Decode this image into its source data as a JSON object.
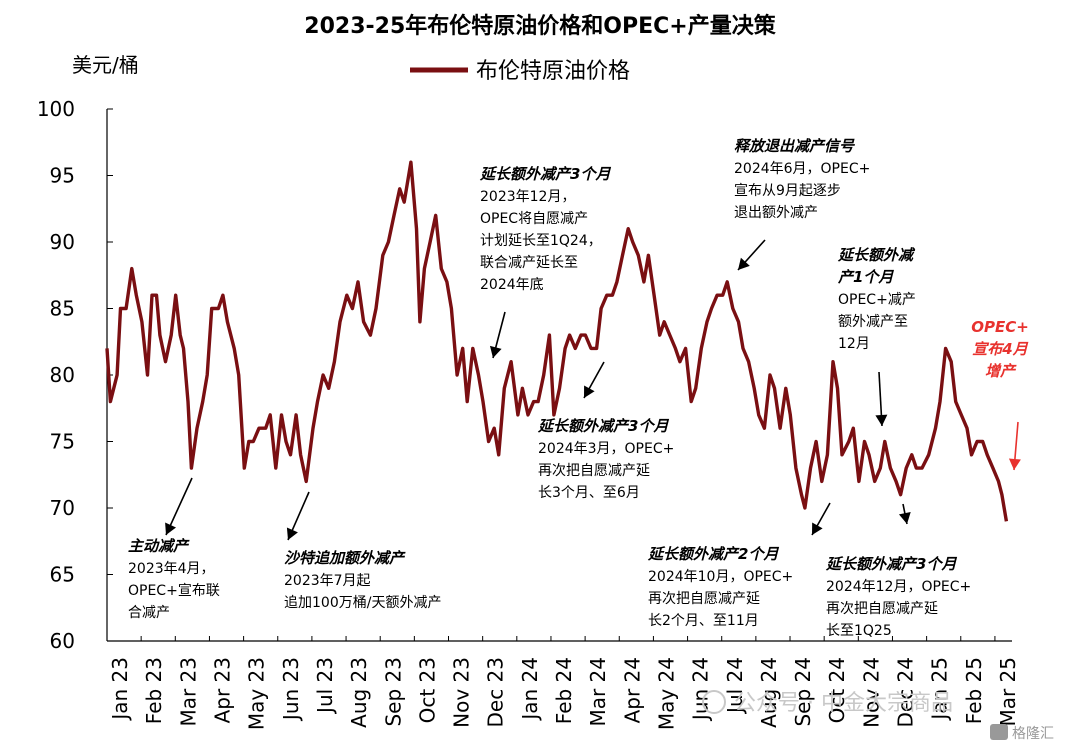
{
  "chart_data": {
    "type": "line",
    "title": "2023-25年布伦特原油价格和OPEC+产量决策",
    "ylabel": "美元/桶",
    "ylim": [
      60,
      100
    ],
    "yticks": [
      60,
      65,
      70,
      75,
      80,
      85,
      90,
      95,
      100
    ],
    "grid": false,
    "legend_position": "top-center",
    "x_range": [
      "2023-01-01",
      "2025-03-15"
    ],
    "x_tick_labels": [
      "Jan 23",
      "Feb 23",
      "Mar 23",
      "Apr 23",
      "May 23",
      "Jun 23",
      "Jul 23",
      "Aug 23",
      "Sep 23",
      "Oct 23",
      "Nov 23",
      "Dec 23",
      "Jan 24",
      "Feb 24",
      "Mar 24",
      "Apr 24",
      "May 24",
      "Jun 24",
      "Jul 24",
      "Aug 24",
      "Sep 24",
      "Oct 24",
      "Nov 24",
      "Dec 24",
      "Jan 25",
      "Feb 25",
      "Mar 25"
    ],
    "series": [
      {
        "name": "布伦特原油价格",
        "color": "#7a0f12",
        "points": [
          [
            "2023-01-01",
            82
          ],
          [
            "2023-01-04",
            78
          ],
          [
            "2023-01-10",
            80
          ],
          [
            "2023-01-13",
            85
          ],
          [
            "2023-01-18",
            85
          ],
          [
            "2023-01-23",
            88
          ],
          [
            "2023-01-27",
            86
          ],
          [
            "2023-02-01",
            84
          ],
          [
            "2023-02-06",
            80
          ],
          [
            "2023-02-10",
            86
          ],
          [
            "2023-02-14",
            86
          ],
          [
            "2023-02-17",
            83
          ],
          [
            "2023-02-22",
            81
          ],
          [
            "2023-02-27",
            83
          ],
          [
            "2023-03-03",
            86
          ],
          [
            "2023-03-07",
            83
          ],
          [
            "2023-03-10",
            82
          ],
          [
            "2023-03-14",
            78
          ],
          [
            "2023-03-17",
            73
          ],
          [
            "2023-03-22",
            76
          ],
          [
            "2023-03-27",
            78
          ],
          [
            "2023-03-31",
            80
          ],
          [
            "2023-04-04",
            85
          ],
          [
            "2023-04-10",
            85
          ],
          [
            "2023-04-14",
            86
          ],
          [
            "2023-04-18",
            84
          ],
          [
            "2023-04-24",
            82
          ],
          [
            "2023-04-28",
            80
          ],
          [
            "2023-05-03",
            73
          ],
          [
            "2023-05-07",
            75
          ],
          [
            "2023-05-11",
            75
          ],
          [
            "2023-05-16",
            76
          ],
          [
            "2023-05-22",
            76
          ],
          [
            "2023-05-26",
            77
          ],
          [
            "2023-05-31",
            73
          ],
          [
            "2023-06-05",
            77
          ],
          [
            "2023-06-09",
            75
          ],
          [
            "2023-06-13",
            74
          ],
          [
            "2023-06-18",
            77
          ],
          [
            "2023-06-22",
            74
          ],
          [
            "2023-06-27",
            72
          ],
          [
            "2023-07-03",
            76
          ],
          [
            "2023-07-07",
            78
          ],
          [
            "2023-07-12",
            80
          ],
          [
            "2023-07-17",
            79
          ],
          [
            "2023-07-22",
            81
          ],
          [
            "2023-07-27",
            84
          ],
          [
            "2023-08-02",
            86
          ],
          [
            "2023-08-07",
            85
          ],
          [
            "2023-08-12",
            87
          ],
          [
            "2023-08-17",
            84
          ],
          [
            "2023-08-23",
            83
          ],
          [
            "2023-08-28",
            85
          ],
          [
            "2023-09-03",
            89
          ],
          [
            "2023-09-08",
            90
          ],
          [
            "2023-09-13",
            92
          ],
          [
            "2023-09-18",
            94
          ],
          [
            "2023-09-22",
            93
          ],
          [
            "2023-09-28",
            96
          ],
          [
            "2023-10-03",
            91
          ],
          [
            "2023-10-06",
            84
          ],
          [
            "2023-10-10",
            88
          ],
          [
            "2023-10-15",
            90
          ],
          [
            "2023-10-20",
            92
          ],
          [
            "2023-10-25",
            88
          ],
          [
            "2023-10-30",
            87
          ],
          [
            "2023-11-03",
            85
          ],
          [
            "2023-11-08",
            80
          ],
          [
            "2023-11-13",
            82
          ],
          [
            "2023-11-17",
            78
          ],
          [
            "2023-11-22",
            82
          ],
          [
            "2023-11-27",
            80
          ],
          [
            "2023-12-01",
            78
          ],
          [
            "2023-12-06",
            75
          ],
          [
            "2023-12-11",
            76
          ],
          [
            "2023-12-15",
            74
          ],
          [
            "2023-12-20",
            79
          ],
          [
            "2023-12-26",
            81
          ],
          [
            "2024-01-01",
            77
          ],
          [
            "2024-01-05",
            79
          ],
          [
            "2024-01-10",
            77
          ],
          [
            "2024-01-15",
            78
          ],
          [
            "2024-01-19",
            78
          ],
          [
            "2024-01-24",
            80
          ],
          [
            "2024-01-29",
            83
          ],
          [
            "2024-02-02",
            77
          ],
          [
            "2024-02-07",
            79
          ],
          [
            "2024-02-12",
            82
          ],
          [
            "2024-02-16",
            83
          ],
          [
            "2024-02-21",
            82
          ],
          [
            "2024-02-26",
            83
          ],
          [
            "2024-03-01",
            83
          ],
          [
            "2024-03-06",
            82
          ],
          [
            "2024-03-11",
            82
          ],
          [
            "2024-03-15",
            85
          ],
          [
            "2024-03-20",
            86
          ],
          [
            "2024-03-25",
            86
          ],
          [
            "2024-03-29",
            87
          ],
          [
            "2024-04-03",
            89
          ],
          [
            "2024-04-08",
            91
          ],
          [
            "2024-04-12",
            90
          ],
          [
            "2024-04-17",
            89
          ],
          [
            "2024-04-22",
            87
          ],
          [
            "2024-04-26",
            89
          ],
          [
            "2024-05-01",
            86
          ],
          [
            "2024-05-06",
            83
          ],
          [
            "2024-05-10",
            84
          ],
          [
            "2024-05-15",
            83
          ],
          [
            "2024-05-20",
            82
          ],
          [
            "2024-05-24",
            81
          ],
          [
            "2024-05-29",
            82
          ],
          [
            "2024-06-03",
            78
          ],
          [
            "2024-06-07",
            79
          ],
          [
            "2024-06-12",
            82
          ],
          [
            "2024-06-17",
            84
          ],
          [
            "2024-06-21",
            85
          ],
          [
            "2024-06-26",
            86
          ],
          [
            "2024-07-01",
            86
          ],
          [
            "2024-07-05",
            87
          ],
          [
            "2024-07-10",
            85
          ],
          [
            "2024-07-15",
            84
          ],
          [
            "2024-07-19",
            82
          ],
          [
            "2024-07-24",
            81
          ],
          [
            "2024-07-29",
            79
          ],
          [
            "2024-08-02",
            77
          ],
          [
            "2024-08-07",
            76
          ],
          [
            "2024-08-12",
            80
          ],
          [
            "2024-08-16",
            79
          ],
          [
            "2024-08-21",
            76
          ],
          [
            "2024-08-26",
            79
          ],
          [
            "2024-08-30",
            77
          ],
          [
            "2024-09-04",
            73
          ],
          [
            "2024-09-09",
            71
          ],
          [
            "2024-09-12",
            70
          ],
          [
            "2024-09-17",
            73
          ],
          [
            "2024-09-22",
            75
          ],
          [
            "2024-09-27",
            72
          ],
          [
            "2024-10-02",
            74
          ],
          [
            "2024-10-07",
            81
          ],
          [
            "2024-10-11",
            79
          ],
          [
            "2024-10-15",
            74
          ],
          [
            "2024-10-21",
            75
          ],
          [
            "2024-10-25",
            76
          ],
          [
            "2024-10-30",
            72
          ],
          [
            "2024-11-04",
            75
          ],
          [
            "2024-11-08",
            74
          ],
          [
            "2024-11-13",
            72
          ],
          [
            "2024-11-18",
            73
          ],
          [
            "2024-11-22",
            75
          ],
          [
            "2024-11-27",
            73
          ],
          [
            "2024-12-02",
            72
          ],
          [
            "2024-12-06",
            71
          ],
          [
            "2024-12-11",
            73
          ],
          [
            "2024-12-16",
            74
          ],
          [
            "2024-12-20",
            73
          ],
          [
            "2024-12-25",
            73
          ],
          [
            "2024-12-31",
            74
          ],
          [
            "2025-01-06",
            76
          ],
          [
            "2025-01-10",
            78
          ],
          [
            "2025-01-15",
            82
          ],
          [
            "2025-01-20",
            81
          ],
          [
            "2025-01-24",
            78
          ],
          [
            "2025-01-29",
            77
          ],
          [
            "2025-02-03",
            76
          ],
          [
            "2025-02-07",
            74
          ],
          [
            "2025-02-12",
            75
          ],
          [
            "2025-02-17",
            75
          ],
          [
            "2025-02-21",
            74
          ],
          [
            "2025-02-26",
            73
          ],
          [
            "2025-03-03",
            72
          ],
          [
            "2025-03-06",
            71
          ],
          [
            "2025-03-10",
            69
          ]
        ]
      }
    ],
    "annotations": [
      {
        "title": "主动减产",
        "body": [
          "2023年4月，",
          "OPEC+宣布联",
          "合减产"
        ],
        "color": "#000000"
      },
      {
        "title": "沙特追加额外减产",
        "body": [
          "2023年7月起",
          "追加100万桶/天额外减产"
        ],
        "color": "#000000"
      },
      {
        "title": "延长额外减产3个月",
        "body": [
          "2023年12月，",
          "OPEC将自愿减产",
          "计划延长至1Q24，",
          "联合减产延长至",
          "2024年底"
        ],
        "color": "#000000"
      },
      {
        "title": "延长额外减产3个月",
        "body": [
          "2024年3月，OPEC+",
          "再次把自愿减产延",
          "长3个月、至6月"
        ],
        "color": "#000000"
      },
      {
        "title": "释放退出减产信号",
        "body": [
          "2024年6月，OPEC+",
          "宣布从9月起逐步",
          "退出额外减产"
        ],
        "color": "#000000"
      },
      {
        "title": "延长额外减",
        "title2": "产1个月",
        "body": [
          "OPEC+减产",
          "额外减产至",
          "12月"
        ],
        "color": "#000000"
      },
      {
        "title": "延长额外减产2个月",
        "body": [
          "2024年10月，OPEC+",
          "再次把自愿减产延",
          "长2个月、至11月"
        ],
        "color": "#000000"
      },
      {
        "title": "延长额外减产3个月",
        "body": [
          "2024年12月，OPEC+",
          "再次把自愿减产延",
          "长至1Q25"
        ],
        "color": "#000000"
      },
      {
        "title": "OPEC+",
        "body": [
          "宣布4月",
          "增产"
        ],
        "color": "#e8322e"
      }
    ]
  },
  "watermark": {
    "text": "公众号 · 中金大宗商品",
    "badge": "格隆汇"
  }
}
